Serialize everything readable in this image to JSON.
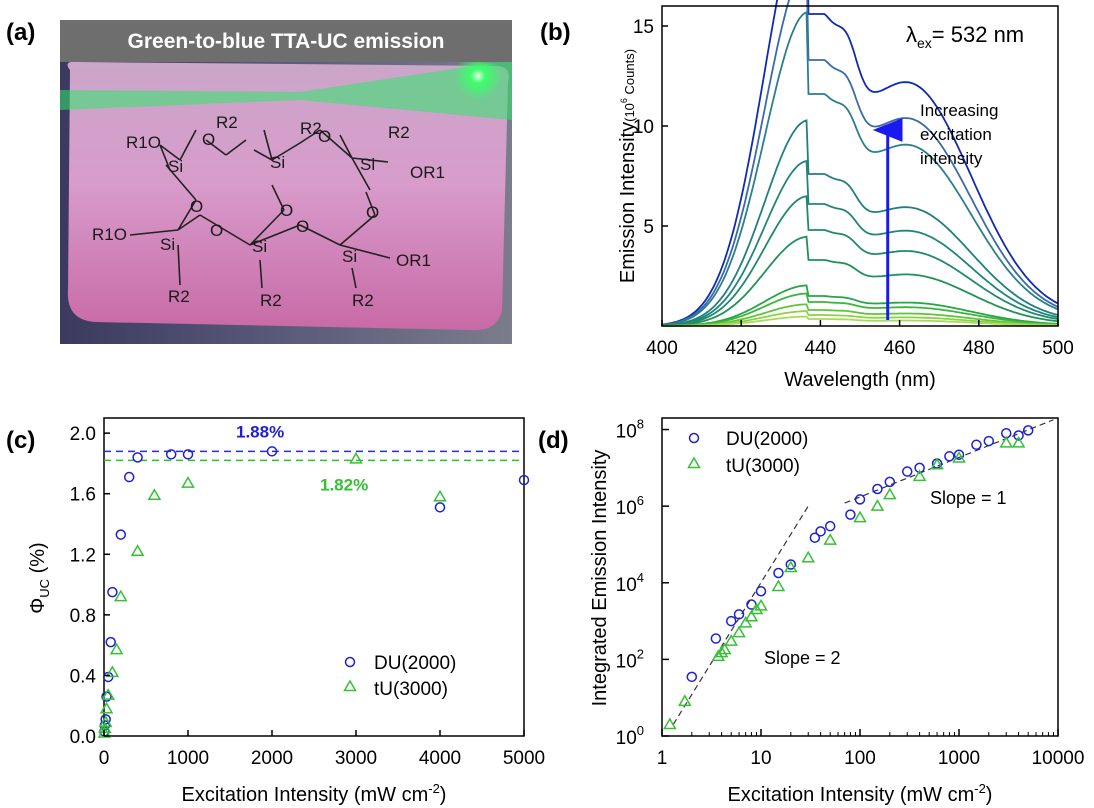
{
  "panels": {
    "a": {
      "label": "(a)",
      "banner": "Green-to-blue TTA-UC emission",
      "structure_labels": [
        "R1O",
        "R2",
        "O",
        "Si",
        "R2",
        "Si",
        "O",
        "R2",
        "Si",
        "OR1",
        "O",
        "O",
        "O",
        "R1O",
        "Si",
        "O",
        "Si",
        "O",
        "Si",
        "OR1",
        "R2",
        "R2",
        "R2"
      ]
    },
    "b": {
      "label": "(b)"
    },
    "c": {
      "label": "(c)"
    },
    "d": {
      "label": "(d)"
    }
  },
  "colors": {
    "du": "#1f1fd6",
    "tu": "#35c035",
    "guide_blue": "#2b2bd9",
    "guide_green": "#2cbf2c",
    "arrow": "#1a1af0",
    "spectra": [
      "#0f2bb3",
      "#3a6aa8",
      "#2a7f8f",
      "#227f7f",
      "#21857a",
      "#1f8a6a",
      "#1f9258",
      "#27a548",
      "#3bb53a",
      "#5fc43a",
      "#8fd145",
      "#a8da5a"
    ]
  },
  "chart_data": [
    {
      "panel": "b",
      "type": "line",
      "xlabel": "Wavelength (nm)",
      "ylabel": "Emission Intensity",
      "ylabel_unit": "(10",
      "ylabel_unit_exp": "6",
      "ylabel_unit_tail": " Counts)",
      "xlim": [
        400,
        500
      ],
      "ylim": [
        0,
        16
      ],
      "xticks": [
        400,
        420,
        440,
        460,
        480,
        500
      ],
      "yticks": [
        5,
        10,
        15
      ],
      "annotation_lambda": "λ",
      "annotation_sub": "ex",
      "annotation_rest": "= 532 nm",
      "arrow_text": [
        "Increasing",
        "excitation",
        "intensity"
      ],
      "arrow": {
        "x": 457,
        "y_from": 0.3,
        "y_to": 9.8
      },
      "series": [
        {
          "peak": 15.6
        },
        {
          "peak": 13.3
        },
        {
          "peak": 11.6
        },
        {
          "peak": 7.6
        },
        {
          "peak": 6.1
        },
        {
          "peak": 4.8
        },
        {
          "peak": 3.3
        },
        {
          "peak": 1.5
        },
        {
          "peak": 1.2
        },
        {
          "peak": 0.8
        },
        {
          "peak": 0.55
        },
        {
          "peak": 0.35
        }
      ]
    },
    {
      "panel": "c",
      "type": "scatter",
      "xlabel": "Excitation Intensity (mW cm",
      "xlabel_exp": "-2",
      "xlabel_close": ")",
      "ylabel": "Φ",
      "ylabel_sub": "UC",
      "ylabel_unit": " (%)",
      "xlim": [
        0,
        5000
      ],
      "ylim": [
        0,
        2.1
      ],
      "xticks": [
        0,
        1000,
        2000,
        3000,
        4000,
        5000
      ],
      "yticks": [
        "0.0",
        "0.4",
        "0.8",
        "1.2",
        "1.6",
        "2.0"
      ],
      "hlines": [
        {
          "y": 1.88,
          "label": "1.88%",
          "series": "du"
        },
        {
          "y": 1.82,
          "label": "1.82%",
          "series": "tu"
        }
      ],
      "legend_position": "lower-right",
      "series": [
        {
          "name": "DU(2000)",
          "marker": "circle",
          "points": [
            [
              5,
              0.03
            ],
            [
              10,
              0.07
            ],
            [
              20,
              0.11
            ],
            [
              30,
              0.26
            ],
            [
              50,
              0.39
            ],
            [
              80,
              0.62
            ],
            [
              100,
              0.95
            ],
            [
              200,
              1.33
            ],
            [
              300,
              1.71
            ],
            [
              400,
              1.84
            ],
            [
              800,
              1.86
            ],
            [
              1000,
              1.86
            ],
            [
              2000,
              1.88
            ],
            [
              4000,
              1.51
            ],
            [
              5000,
              1.69
            ]
          ]
        },
        {
          "name": "tU(3000)",
          "marker": "triangle",
          "points": [
            [
              5,
              0.02
            ],
            [
              10,
              0.05
            ],
            [
              20,
              0.09
            ],
            [
              30,
              0.18
            ],
            [
              50,
              0.27
            ],
            [
              100,
              0.42
            ],
            [
              150,
              0.57
            ],
            [
              200,
              0.92
            ],
            [
              400,
              1.22
            ],
            [
              600,
              1.59
            ],
            [
              1000,
              1.67
            ],
            [
              3000,
              1.83
            ],
            [
              4000,
              1.58
            ]
          ]
        }
      ]
    },
    {
      "panel": "d",
      "type": "scatter",
      "xlabel": "Excitation Intensity (mW cm",
      "xlabel_exp": "-2",
      "xlabel_close": ")",
      "ylabel": "Integrated Emission Intensity",
      "xscale": "log",
      "yscale": "log",
      "xlim": [
        1,
        10000
      ],
      "ylim": [
        1,
        200000000
      ],
      "xticks": [
        "1",
        "10",
        "100",
        "1000",
        "10000"
      ],
      "yticks_base": "10",
      "yticks_exp": [
        "0",
        "2",
        "4",
        "6",
        "8"
      ],
      "legend_position": "top-left",
      "slope_labels": [
        "Slope = 1",
        "Slope = 2"
      ],
      "fit_lines": [
        {
          "from": [
            1.3,
            2
          ],
          "to": [
            30,
            1000000
          ]
        },
        {
          "from": [
            70,
            1200000
          ],
          "to": [
            9000,
            180000000
          ]
        }
      ],
      "series": [
        {
          "name": "DU(2000)",
          "marker": "circle",
          "points": [
            [
              2,
              35
            ],
            [
              3.5,
              350
            ],
            [
              5,
              1000
            ],
            [
              6,
              1500
            ],
            [
              8,
              2700
            ],
            [
              10,
              6000
            ],
            [
              15,
              18000
            ],
            [
              20,
              30000
            ],
            [
              35,
              150000
            ],
            [
              40,
              220000
            ],
            [
              50,
              300000
            ],
            [
              80,
              600000
            ],
            [
              100,
              1500000
            ],
            [
              150,
              2800000
            ],
            [
              200,
              4300000
            ],
            [
              300,
              8000000
            ],
            [
              400,
              10000000
            ],
            [
              600,
              13000000
            ],
            [
              800,
              20000000
            ],
            [
              1000,
              22000000
            ],
            [
              1500,
              40000000
            ],
            [
              2000,
              50000000
            ],
            [
              3000,
              80000000
            ],
            [
              4000,
              70000000
            ],
            [
              5000,
              95000000
            ]
          ]
        },
        {
          "name": "tU(3000)",
          "marker": "triangle",
          "points": [
            [
              1.2,
              2
            ],
            [
              1.7,
              8
            ],
            [
              3.7,
              120
            ],
            [
              4,
              150
            ],
            [
              4.3,
              180
            ],
            [
              5,
              300
            ],
            [
              6,
              500
            ],
            [
              7,
              900
            ],
            [
              8,
              1300
            ],
            [
              9,
              2000
            ],
            [
              10,
              2500
            ],
            [
              15,
              8000
            ],
            [
              20,
              25000
            ],
            [
              30,
              45000
            ],
            [
              50,
              130000
            ],
            [
              100,
              500000
            ],
            [
              150,
              1000000
            ],
            [
              200,
              2000000
            ],
            [
              400,
              6000000
            ],
            [
              600,
              12000000
            ],
            [
              1000,
              18000000
            ],
            [
              3000,
              45000000
            ],
            [
              4000,
              45000000
            ]
          ]
        }
      ]
    }
  ]
}
